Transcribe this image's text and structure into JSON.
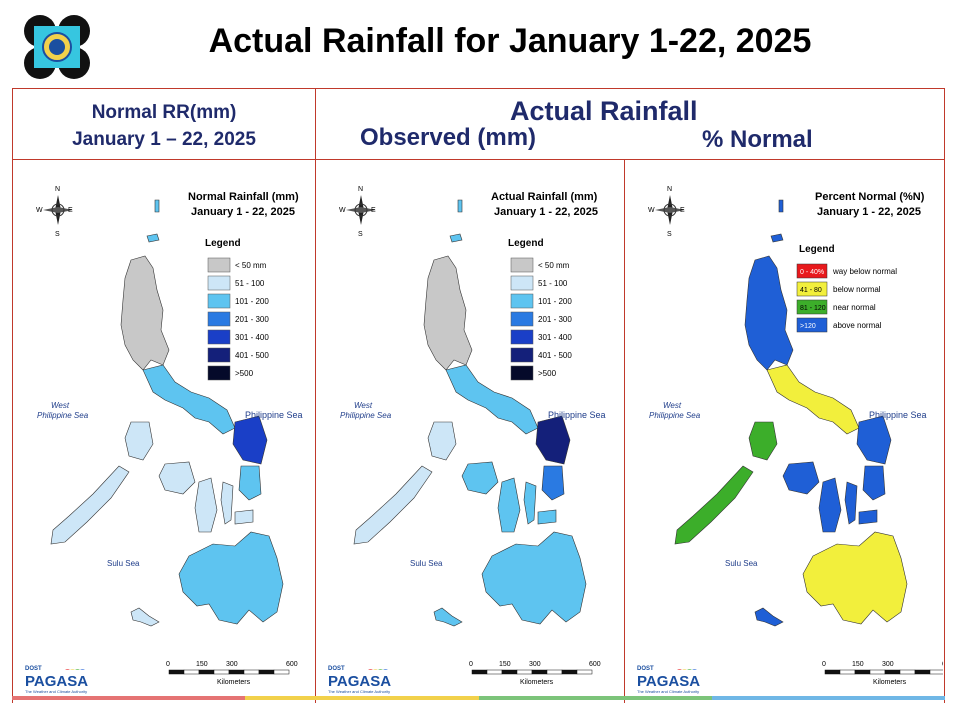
{
  "page": {
    "title": "Actual Rainfall for January 1-22, 2025"
  },
  "headers": {
    "normal_line1": "Normal RR(mm)",
    "normal_line2": "January 1 – 22, 2025",
    "actual": "Actual Rainfall",
    "observed": "Observed (mm)",
    "percent": "% Normal"
  },
  "compass": {
    "n": "N",
    "s": "S",
    "e": "E",
    "w": "W"
  },
  "seas": {
    "west1": "West",
    "west2": "Philippine Sea",
    "east": "Philippine Sea",
    "sulu": "Sulu Sea"
  },
  "scale": {
    "ticks": [
      "0",
      "150",
      "300",
      "600"
    ],
    "unit": "Kilometers"
  },
  "branding": {
    "top": "DOST",
    "brand": "PAGASA",
    "tagline": "The Weather and Climate Authority"
  },
  "maps": [
    {
      "id": "normal",
      "title1": "Normal Rainfall (mm)",
      "title2": "January 1 - 22, 2025",
      "legend_title": "Legend",
      "legend": [
        {
          "label": "< 50 mm",
          "color": "#c8c8c8"
        },
        {
          "label": "51 - 100",
          "color": "#cde6f7"
        },
        {
          "label": "101 - 200",
          "color": "#5ec4f0"
        },
        {
          "label": "201 - 300",
          "color": "#2a7ae2"
        },
        {
          "label": "301 - 400",
          "color": "#1a3fc7"
        },
        {
          "label": "401 - 500",
          "color": "#14207a"
        },
        {
          "label": ">500",
          "color": "#050a2a"
        }
      ]
    },
    {
      "id": "actual",
      "title1": "Actual Rainfall (mm)",
      "title2": "January 1 - 22, 2025",
      "legend_title": "Legend",
      "legend": [
        {
          "label": "< 50 mm",
          "color": "#c8c8c8"
        },
        {
          "label": "51 - 100",
          "color": "#cde6f7"
        },
        {
          "label": "101 - 200",
          "color": "#5ec4f0"
        },
        {
          "label": "201 - 300",
          "color": "#2a7ae2"
        },
        {
          "label": "301 - 400",
          "color": "#1a3fc7"
        },
        {
          "label": "401 - 500",
          "color": "#14207a"
        },
        {
          "label": ">500",
          "color": "#050a2a"
        }
      ]
    },
    {
      "id": "percent",
      "title1": "Percent Normal (%N)",
      "title2": "January 1 - 22, 2025",
      "legend_title": "Legend",
      "legend": [
        {
          "label": "way below normal",
          "swatch": "0 - 40%",
          "color": "#e8191c",
          "swatch_text": "#ffffff"
        },
        {
          "label": "below normal",
          "swatch": "41 - 80",
          "color": "#f2ef3c",
          "swatch_text": "#000000"
        },
        {
          "label": "near normal",
          "swatch": "81 - 120",
          "color": "#3cae2a",
          "swatch_text": "#000000"
        },
        {
          "label": "above normal",
          "swatch": ">120",
          "color": "#1f5fd6",
          "swatch_text": "#ffffff"
        }
      ]
    }
  ],
  "footer_colors": [
    "#e57373",
    "#f2d14b",
    "#7cc47a",
    "#6fb7e6"
  ]
}
